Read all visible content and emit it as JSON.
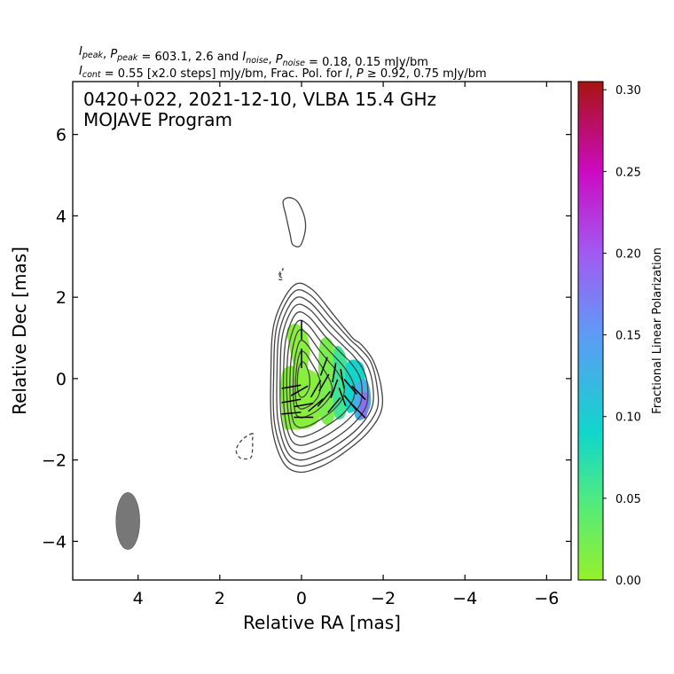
{
  "header": {
    "line1": [
      {
        "t": "I",
        "i": true
      },
      {
        "t": "peak",
        "sub": true
      },
      {
        "t": ", "
      },
      {
        "t": "P",
        "i": true
      },
      {
        "t": "peak",
        "sub": true
      },
      {
        "t": " = 603.1, 2.6 and "
      },
      {
        "t": "I",
        "i": true
      },
      {
        "t": "noise",
        "sub": true
      },
      {
        "t": ", "
      },
      {
        "t": "P",
        "i": true
      },
      {
        "t": "noise",
        "sub": true
      },
      {
        "t": " = 0.18, 0.15 mJy/bm"
      }
    ],
    "line2": [
      {
        "t": "I",
        "i": true
      },
      {
        "t": "cont",
        "sub": true
      },
      {
        "t": " = 0.55 [x2.0 steps] mJy/bm, Frac. Pol. for "
      },
      {
        "t": "I",
        "i": true
      },
      {
        "t": ", "
      },
      {
        "t": "P",
        "i": true
      },
      {
        "t": " ≥ 0.92, 0.75 mJy/bm"
      }
    ]
  },
  "annotation": {
    "line1": "0420+022, 2021-12-10, VLBA 15.4 GHz",
    "line2": "MOJAVE Program"
  },
  "chart_data": {
    "type": "contour",
    "xlabel": "Relative RA [mas]",
    "ylabel": "Relative Dec [mas]",
    "xlim": [
      5.6,
      -6.6
    ],
    "ylim": [
      -4.95,
      7.3
    ],
    "xticks": [
      4,
      2,
      0,
      -2,
      -4,
      -6
    ],
    "xtick_labels": [
      "4",
      "2",
      "0",
      "−2",
      "−4",
      "−6"
    ],
    "yticks": [
      6,
      4,
      2,
      0,
      -2,
      -4
    ],
    "ytick_labels": [
      "6",
      "4",
      "2",
      "0",
      "−2",
      "−4"
    ],
    "contour_color": "#444444",
    "contours": [
      {
        "level": 0.55,
        "points": [
          [
            0.75,
            0.1
          ],
          [
            0.66,
            1.4
          ],
          [
            0.2,
            2.28
          ],
          [
            -0.25,
            2.2
          ],
          [
            -0.8,
            1.55
          ],
          [
            -1.25,
            1.0
          ],
          [
            -1.45,
            0.85
          ],
          [
            -1.75,
            0.45
          ],
          [
            -1.95,
            -0.2
          ],
          [
            -1.95,
            -0.8
          ],
          [
            -1.6,
            -1.35
          ],
          [
            -1.0,
            -1.85
          ],
          [
            -0.5,
            -2.15
          ],
          [
            0.05,
            -2.3
          ],
          [
            0.45,
            -2.05
          ],
          [
            0.72,
            -1.2
          ]
        ]
      },
      {
        "level": 1.1,
        "points": [
          [
            0.68,
            0.1
          ],
          [
            0.6,
            1.3
          ],
          [
            0.2,
            2.12
          ],
          [
            -0.22,
            2.05
          ],
          [
            -0.75,
            1.45
          ],
          [
            -1.2,
            0.95
          ],
          [
            -1.42,
            0.75
          ],
          [
            -1.7,
            0.4
          ],
          [
            -1.85,
            -0.2
          ],
          [
            -1.85,
            -0.75
          ],
          [
            -1.5,
            -1.28
          ],
          [
            -0.95,
            -1.75
          ],
          [
            -0.45,
            -2.02
          ],
          [
            0.05,
            -2.15
          ],
          [
            0.4,
            -1.92
          ],
          [
            0.66,
            -1.1
          ]
        ]
      },
      {
        "level": 2.2,
        "points": [
          [
            0.6,
            0.1
          ],
          [
            0.53,
            1.2
          ],
          [
            0.18,
            1.95
          ],
          [
            -0.2,
            1.88
          ],
          [
            -0.7,
            1.32
          ],
          [
            -1.15,
            0.85
          ],
          [
            -1.35,
            0.65
          ],
          [
            -1.62,
            0.3
          ],
          [
            -1.75,
            -0.2
          ],
          [
            -1.72,
            -0.72
          ],
          [
            -1.4,
            -1.2
          ],
          [
            -0.88,
            -1.62
          ],
          [
            -0.4,
            -1.88
          ],
          [
            0.05,
            -2.0
          ],
          [
            0.36,
            -1.78
          ],
          [
            0.58,
            -1.0
          ]
        ]
      },
      {
        "level": 4.4,
        "points": [
          [
            0.52,
            0.1
          ],
          [
            0.46,
            1.1
          ],
          [
            0.16,
            1.78
          ],
          [
            -0.2,
            1.7
          ],
          [
            -0.65,
            1.18
          ],
          [
            -1.08,
            0.75
          ],
          [
            -1.28,
            0.55
          ],
          [
            -1.52,
            0.2
          ],
          [
            -1.62,
            -0.2
          ],
          [
            -1.58,
            -0.68
          ],
          [
            -1.28,
            -1.1
          ],
          [
            -0.8,
            -1.48
          ],
          [
            -0.35,
            -1.72
          ],
          [
            0.05,
            -1.83
          ],
          [
            0.32,
            -1.62
          ],
          [
            0.5,
            -0.9
          ]
        ]
      },
      {
        "level": 8.8,
        "points": [
          [
            0.44,
            0.1
          ],
          [
            0.38,
            0.98
          ],
          [
            0.13,
            1.6
          ],
          [
            -0.18,
            1.52
          ],
          [
            -0.58,
            1.04
          ],
          [
            -0.98,
            0.62
          ],
          [
            -1.18,
            0.42
          ],
          [
            -1.4,
            0.1
          ],
          [
            -1.48,
            -0.22
          ],
          [
            -1.44,
            -0.62
          ],
          [
            -1.15,
            -1.0
          ],
          [
            -0.72,
            -1.33
          ],
          [
            -0.3,
            -1.55
          ],
          [
            0.05,
            -1.64
          ],
          [
            0.28,
            -1.45
          ],
          [
            0.42,
            -0.8
          ]
        ]
      },
      {
        "level": 17.6,
        "points": [
          [
            0.36,
            0.1
          ],
          [
            0.3,
            0.85
          ],
          [
            0.1,
            1.4
          ],
          [
            -0.16,
            1.32
          ],
          [
            -0.5,
            0.88
          ],
          [
            -0.85,
            0.5
          ],
          [
            -1.03,
            0.3
          ],
          [
            -1.22,
            0.0
          ],
          [
            -1.3,
            -0.25
          ],
          [
            -1.25,
            -0.55
          ],
          [
            -1.0,
            -0.88
          ],
          [
            -0.62,
            -1.16
          ],
          [
            -0.25,
            -1.36
          ],
          [
            0.05,
            -1.43
          ],
          [
            0.24,
            -1.26
          ],
          [
            0.34,
            -0.7
          ]
        ]
      },
      {
        "level": 35.2,
        "points": [
          [
            0.28,
            0.1
          ],
          [
            0.22,
            0.72
          ],
          [
            0.07,
            1.18
          ],
          [
            -0.14,
            1.1
          ],
          [
            -0.42,
            0.72
          ],
          [
            -0.7,
            0.38
          ],
          [
            -0.85,
            0.2
          ],
          [
            -1.0,
            -0.05
          ],
          [
            -1.05,
            -0.25
          ],
          [
            -1.0,
            -0.5
          ],
          [
            -0.8,
            -0.75
          ],
          [
            -0.5,
            -0.98
          ],
          [
            -0.2,
            -1.15
          ],
          [
            0.04,
            -1.2
          ],
          [
            0.2,
            -1.06
          ],
          [
            0.27,
            -0.6
          ]
        ]
      },
      {
        "level": 70.4,
        "points": [
          [
            0.2,
            0.1
          ],
          [
            0.15,
            0.55
          ],
          [
            0.04,
            0.92
          ],
          [
            -0.12,
            0.86
          ],
          [
            -0.33,
            0.55
          ],
          [
            -0.52,
            0.26
          ],
          [
            -0.62,
            0.1
          ],
          [
            -0.72,
            -0.1
          ],
          [
            -0.75,
            -0.25
          ],
          [
            -0.7,
            -0.44
          ],
          [
            -0.56,
            -0.62
          ],
          [
            -0.36,
            -0.8
          ],
          [
            -0.14,
            -0.92
          ],
          [
            0.03,
            -0.96
          ],
          [
            0.15,
            -0.84
          ],
          [
            0.2,
            -0.45
          ]
        ]
      },
      {
        "level": 140.8,
        "points": [
          [
            0.14,
            0.05
          ],
          [
            0.1,
            0.4
          ],
          [
            0.02,
            0.66
          ],
          [
            -0.1,
            0.62
          ],
          [
            -0.25,
            0.38
          ],
          [
            -0.38,
            0.15
          ],
          [
            -0.45,
            -0.05
          ],
          [
            -0.46,
            -0.25
          ],
          [
            -0.4,
            -0.45
          ],
          [
            -0.26,
            -0.62
          ],
          [
            -0.1,
            -0.72
          ],
          [
            0.03,
            -0.74
          ],
          [
            0.12,
            -0.62
          ],
          [
            0.15,
            -0.3
          ]
        ]
      },
      {
        "level": 281.6,
        "points": [
          [
            0.1,
            0.0
          ],
          [
            0.07,
            0.25
          ],
          [
            0.0,
            0.4
          ],
          [
            -0.08,
            0.38
          ],
          [
            -0.16,
            0.2
          ],
          [
            -0.2,
            0.0
          ],
          [
            -0.19,
            -0.22
          ],
          [
            -0.1,
            -0.4
          ],
          [
            0.0,
            -0.46
          ],
          [
            0.07,
            -0.38
          ],
          [
            0.1,
            -0.2
          ]
        ]
      },
      {
        "level": 0.55,
        "points": [
          [
            0.45,
            4.35
          ],
          [
            0.38,
            4.0
          ],
          [
            0.28,
            3.55
          ],
          [
            0.22,
            3.3
          ],
          [
            0.05,
            3.25
          ],
          [
            -0.05,
            3.45
          ],
          [
            -0.1,
            3.75
          ],
          [
            -0.05,
            4.05
          ],
          [
            0.1,
            4.35
          ],
          [
            0.3,
            4.45
          ]
        ]
      }
    ],
    "negative_contours": [
      {
        "level": -0.55,
        "points": [
          [
            0.55,
            2.55
          ],
          [
            0.45,
            2.7
          ],
          [
            0.55,
            2.45
          ],
          [
            0.45,
            2.45
          ]
        ]
      },
      {
        "level": -0.55,
        "points": [
          [
            1.2,
            -1.35
          ],
          [
            1.45,
            -1.5
          ],
          [
            1.6,
            -1.75
          ],
          [
            1.5,
            -1.95
          ],
          [
            1.25,
            -1.95
          ],
          [
            1.2,
            -1.75
          ],
          [
            1.2,
            -1.5
          ]
        ]
      }
    ],
    "polarization_regions": [
      {
        "frac_pol": 0.01,
        "points": [
          [
            0.45,
            0.2
          ],
          [
            0.45,
            -1.1
          ],
          [
            0.25,
            -1.25
          ],
          [
            -0.2,
            -1.2
          ],
          [
            -0.45,
            -0.95
          ],
          [
            -0.5,
            -0.2
          ],
          [
            -0.25,
            0.2
          ]
        ]
      },
      {
        "frac_pol": 0.01,
        "points": [
          [
            0.3,
            0.8
          ],
          [
            0.35,
            1.2
          ],
          [
            0.15,
            1.35
          ],
          [
            -0.1,
            1.15
          ],
          [
            -0.2,
            0.7
          ],
          [
            -0.1,
            0.2
          ],
          [
            0.15,
            0.25
          ]
        ]
      },
      {
        "frac_pol": 0.02,
        "points": [
          [
            -0.45,
            0.85
          ],
          [
            -0.8,
            0.75
          ],
          [
            -0.8,
            -0.95
          ],
          [
            -0.45,
            -0.9
          ]
        ]
      },
      {
        "frac_pol": 0.06,
        "points": [
          [
            -0.8,
            0.7
          ],
          [
            -1.1,
            0.5
          ],
          [
            -1.1,
            -0.8
          ],
          [
            -0.8,
            -0.85
          ]
        ]
      },
      {
        "frac_pol": 0.09,
        "points": [
          [
            -1.1,
            0.35
          ],
          [
            -1.5,
            0.35
          ],
          [
            -1.55,
            -0.4
          ],
          [
            -1.35,
            -0.75
          ],
          [
            -1.1,
            -0.75
          ]
        ]
      },
      {
        "frac_pol": 0.13,
        "points": [
          [
            -1.3,
            -0.2
          ],
          [
            -1.6,
            -0.05
          ],
          [
            -1.7,
            -0.6
          ],
          [
            -1.5,
            -1.0
          ],
          [
            -1.3,
            -0.9
          ]
        ]
      },
      {
        "frac_pol": 0.18,
        "points": [
          [
            -1.45,
            -0.4
          ],
          [
            -1.65,
            -0.4
          ],
          [
            -1.6,
            -0.9
          ],
          [
            -1.45,
            -0.95
          ]
        ]
      }
    ],
    "evpa_ticks": [
      {
        "x": 0.0,
        "y": 1.2,
        "angle": 90
      },
      {
        "x": 0.0,
        "y": 0.5,
        "angle": 90
      },
      {
        "x": 0.25,
        "y": -0.2,
        "angle": 10
      },
      {
        "x": 0.25,
        "y": -0.55,
        "angle": 10
      },
      {
        "x": 0.25,
        "y": -0.85,
        "angle": 5
      },
      {
        "x": 0.05,
        "y": -0.3,
        "angle": 30
      },
      {
        "x": -0.05,
        "y": -0.65,
        "angle": 10
      },
      {
        "x": -0.05,
        "y": -0.95,
        "angle": 0
      },
      {
        "x": -0.35,
        "y": -0.25,
        "angle": 60
      },
      {
        "x": -0.35,
        "y": -0.65,
        "angle": 40
      },
      {
        "x": -0.55,
        "y": 0.3,
        "angle": 70
      },
      {
        "x": -0.55,
        "y": -0.1,
        "angle": 60
      },
      {
        "x": -0.55,
        "y": -0.5,
        "angle": 50
      },
      {
        "x": -0.8,
        "y": 0.15,
        "angle": 80
      },
      {
        "x": -0.8,
        "y": -0.25,
        "angle": 70
      },
      {
        "x": -0.8,
        "y": -0.65,
        "angle": 50
      },
      {
        "x": -1.0,
        "y": 0.0,
        "angle": 100
      },
      {
        "x": -1.0,
        "y": -0.45,
        "angle": 110
      },
      {
        "x": -1.2,
        "y": -0.2,
        "angle": 130
      },
      {
        "x": -1.2,
        "y": -0.6,
        "angle": 130
      },
      {
        "x": -1.4,
        "y": -0.35,
        "angle": 135
      },
      {
        "x": -1.4,
        "y": -0.8,
        "angle": 135
      }
    ],
    "beam": {
      "x": 4.25,
      "y": -3.5,
      "major": 1.4,
      "minor": 0.58,
      "pa": 0,
      "color": "#777777"
    },
    "colorbar": {
      "label": "Fractional Linear Polarization",
      "min": 0.0,
      "max": 0.305,
      "ticks": [
        0.0,
        0.05,
        0.1,
        0.15,
        0.2,
        0.25,
        0.3
      ],
      "tick_labels": [
        "0.00",
        "0.05",
        "0.10",
        "0.15",
        "0.20",
        "0.25",
        "0.30"
      ],
      "stops": [
        {
          "v": 0.0,
          "c": "#96f02a"
        },
        {
          "v": 0.05,
          "c": "#4eea82"
        },
        {
          "v": 0.09,
          "c": "#10d6cc"
        },
        {
          "v": 0.15,
          "c": "#5e9bf6"
        },
        {
          "v": 0.2,
          "c": "#a25af2"
        },
        {
          "v": 0.25,
          "c": "#cc0ac2"
        },
        {
          "v": 0.305,
          "c": "#a8140f"
        }
      ]
    }
  }
}
